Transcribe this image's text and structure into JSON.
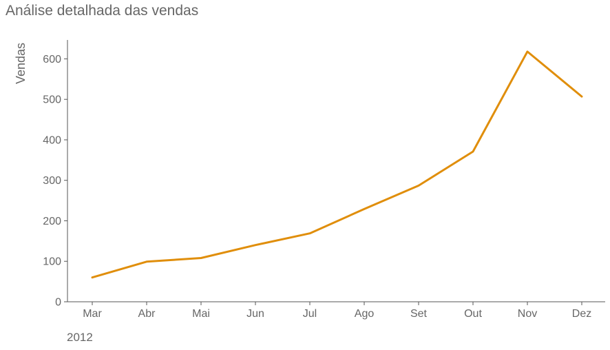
{
  "chart_data": {
    "type": "line",
    "title": "Análise detalhada das vendas",
    "xlabel": "",
    "ylabel": "Vendas",
    "x_secondary_label": "2012",
    "categories": [
      "Mar",
      "Abr",
      "Mai",
      "Jun",
      "Jul",
      "Ago",
      "Set",
      "Out",
      "Nov",
      "Dez"
    ],
    "series": [
      {
        "values": [
          60,
          99,
          108,
          140,
          169,
          229,
          287,
          371,
          618,
          507
        ],
        "color": "#e08e0b"
      }
    ],
    "ylim": [
      0,
      650
    ],
    "yticks": [
      0,
      100,
      200,
      300,
      400,
      500,
      600
    ],
    "grid": false,
    "legend": "none"
  }
}
